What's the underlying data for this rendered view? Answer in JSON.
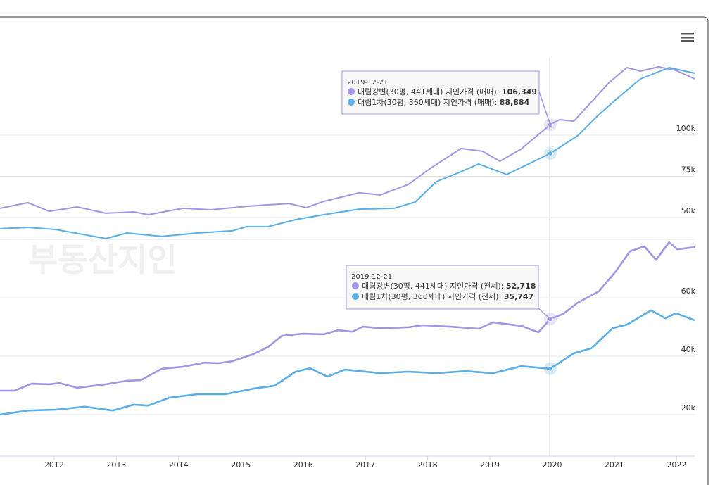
{
  "watermark": "부동산지인",
  "chart_data": [
    {
      "type": "line",
      "xlim": [
        2011.13,
        2022.29
      ],
      "ylim": [
        36750,
        147000
      ],
      "yticks": [
        {
          "value": 50000,
          "label": "50k"
        },
        {
          "value": 75000,
          "label": "75k"
        },
        {
          "value": 100000,
          "label": "100k"
        }
      ],
      "grid": true,
      "series": [
        {
          "name": "대림강변(30평, 441세대) 지인가격 (매매)",
          "color": "#a394e8",
          "x": [
            2011.13,
            2011.58,
            2011.92,
            2012.37,
            2012.83,
            2013.28,
            2013.51,
            2014.07,
            2014.52,
            2015.09,
            2015.43,
            2015.77,
            2016.05,
            2016.33,
            2016.9,
            2017.24,
            2017.69,
            2018.03,
            2018.54,
            2018.88,
            2019.16,
            2019.5,
            2019.97,
            2020.12,
            2020.35,
            2020.63,
            2020.92,
            2021.2,
            2021.42,
            2021.71,
            2021.99,
            2022.29
          ],
          "values": [
            55600,
            59000,
            53800,
            56400,
            52600,
            53400,
            51700,
            55600,
            54700,
            56800,
            57700,
            58500,
            56000,
            59800,
            65000,
            63700,
            70100,
            79500,
            91900,
            90200,
            84200,
            91500,
            106349,
            109400,
            108500,
            120100,
            132100,
            141000,
            138900,
            141500,
            139300,
            134200
          ]
        },
        {
          "name": "대림1차(30평, 360세대) 지인가격 (매매)",
          "color": "#5aaee8",
          "x": [
            2011.13,
            2011.58,
            2012.03,
            2012.83,
            2013.17,
            2013.73,
            2014.3,
            2014.86,
            2015.09,
            2015.43,
            2015.88,
            2016.33,
            2016.9,
            2017.46,
            2017.8,
            2018.14,
            2018.48,
            2018.82,
            2019.27,
            2019.97,
            2020.41,
            2020.75,
            2021.03,
            2021.42,
            2021.88,
            2022.29
          ],
          "values": [
            43200,
            44000,
            42700,
            37200,
            40600,
            38500,
            40600,
            41900,
            44400,
            44400,
            48700,
            51700,
            55100,
            55600,
            59400,
            71800,
            76900,
            82500,
            76100,
            88884,
            99600,
            112400,
            121800,
            134200,
            141000,
            137600
          ]
        }
      ],
      "tooltip": {
        "date": "2019-12-21",
        "value_labels": [
          "106,349",
          "88,884"
        ]
      }
    },
    {
      "type": "line",
      "xlim": [
        2011.13,
        2022.29
      ],
      "ylim": [
        5800,
        80000
      ],
      "yticks": [
        {
          "value": 20000,
          "label": "20k"
        },
        {
          "value": 40000,
          "label": "40k"
        },
        {
          "value": 60000,
          "label": "60k"
        }
      ],
      "xticks": [
        2012,
        2013,
        2014,
        2015,
        2016,
        2017,
        2018,
        2019,
        2020,
        2021,
        2022
      ],
      "grid": true,
      "series": [
        {
          "name": "대림강변(30평, 441세대) 지인가격 (전세)",
          "color": "#a394e8",
          "x": [
            2011.13,
            2011.36,
            2011.64,
            2011.92,
            2012.09,
            2012.37,
            2012.83,
            2013.17,
            2013.39,
            2013.73,
            2014.07,
            2014.41,
            2014.64,
            2014.86,
            2015.2,
            2015.43,
            2015.66,
            2016.0,
            2016.33,
            2016.56,
            2016.79,
            2016.96,
            2017.24,
            2017.69,
            2017.92,
            2018.37,
            2018.82,
            2019.05,
            2019.5,
            2019.78,
            2019.97,
            2020.18,
            2020.41,
            2020.75,
            2021.03,
            2021.25,
            2021.48,
            2021.67,
            2021.88,
            2022.01,
            2022.29
          ],
          "values": [
            28200,
            28200,
            30600,
            30400,
            30800,
            29200,
            30400,
            31600,
            31800,
            35700,
            36400,
            37800,
            37600,
            38300,
            40700,
            43100,
            47000,
            47700,
            47500,
            48900,
            48400,
            50100,
            49600,
            49900,
            50600,
            50100,
            49400,
            51600,
            50400,
            48200,
            52718,
            54500,
            58300,
            62200,
            69200,
            75900,
            77600,
            73000,
            79000,
            76600,
            77300
          ]
        },
        {
          "name": "대림1차(30평, 360세대) 지인가격 (전세)",
          "color": "#5aaee8",
          "x": [
            2011.13,
            2011.58,
            2012.03,
            2012.49,
            2012.94,
            2013.28,
            2013.51,
            2013.85,
            2014.3,
            2014.75,
            2015.2,
            2015.54,
            2015.88,
            2016.11,
            2016.39,
            2016.67,
            2017.24,
            2017.69,
            2018.14,
            2018.6,
            2019.05,
            2019.5,
            2019.97,
            2020.35,
            2020.63,
            2020.97,
            2021.2,
            2021.59,
            2021.82,
            2021.99,
            2022.29
          ],
          "values": [
            20000,
            21400,
            21700,
            22700,
            21400,
            23400,
            23100,
            25800,
            27000,
            27000,
            28900,
            29900,
            34700,
            35900,
            33000,
            35400,
            34200,
            34700,
            34200,
            34900,
            34200,
            36600,
            35747,
            41000,
            42700,
            49600,
            50800,
            55700,
            53000,
            54700,
            52300
          ]
        }
      ],
      "tooltip": {
        "date": "2019-12-21",
        "value_labels": [
          "52,718",
          "35,747"
        ]
      }
    }
  ]
}
